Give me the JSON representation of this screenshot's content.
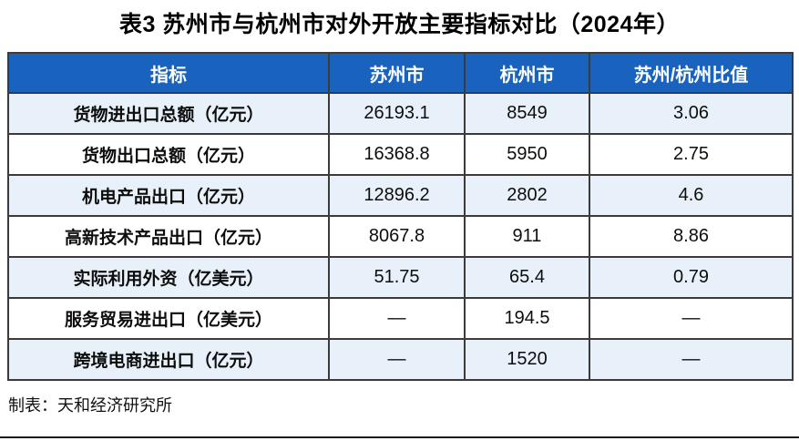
{
  "title": "表3  苏州市与杭州市对外开放主要指标对比（2024年）",
  "footer": "制表：天和经济研究所",
  "colors": {
    "header_bg": "#1963BE",
    "row_alt_bg": "#E8F1F9",
    "border": "#3B3B3B"
  },
  "table": {
    "headers": [
      "指标",
      "苏州市",
      "杭州市",
      "苏州/杭州比值"
    ],
    "rows": [
      {
        "cells": [
          "货物进出口总额（亿元）",
          "26193.1",
          "8549",
          "3.06"
        ]
      },
      {
        "cells": [
          "货物出口总额（亿元）",
          "16368.8",
          "5950",
          "2.75"
        ]
      },
      {
        "cells": [
          "机电产品出口（亿元）",
          "12896.2",
          "2802",
          "4.6"
        ]
      },
      {
        "cells": [
          "高新技术产品出口（亿元）",
          "8067.8",
          "911",
          "8.86"
        ]
      },
      {
        "cells": [
          "实际利用外资（亿美元）",
          "51.75",
          "65.4",
          "0.79"
        ]
      },
      {
        "cells": [
          "服务贸易进出口（亿美元）",
          "—",
          "194.5",
          "—"
        ]
      },
      {
        "cells": [
          "跨境电商进出口（亿元）",
          "—",
          "1520",
          "—"
        ]
      }
    ]
  },
  "chart_data": {
    "type": "table",
    "title": "表3  苏州市与杭州市对外开放主要指标对比（2024年）",
    "columns": [
      "指标",
      "苏州市",
      "杭州市",
      "苏州/杭州比值"
    ],
    "rows": [
      [
        "货物进出口总额（亿元）",
        26193.1,
        8549,
        3.06
      ],
      [
        "货物出口总额（亿元）",
        16368.8,
        5950,
        2.75
      ],
      [
        "机电产品出口（亿元）",
        12896.2,
        2802,
        4.6
      ],
      [
        "高新技术产品出口（亿元）",
        8067.8,
        911,
        8.86
      ],
      [
        "实际利用外资（亿美元）",
        51.75,
        65.4,
        0.79
      ],
      [
        "服务贸易进出口（亿美元）",
        null,
        194.5,
        null
      ],
      [
        "跨境电商进出口（亿元）",
        null,
        1520,
        null
      ]
    ],
    "missing_value_symbol": "—",
    "source_note": "制表：天和经济研究所"
  }
}
